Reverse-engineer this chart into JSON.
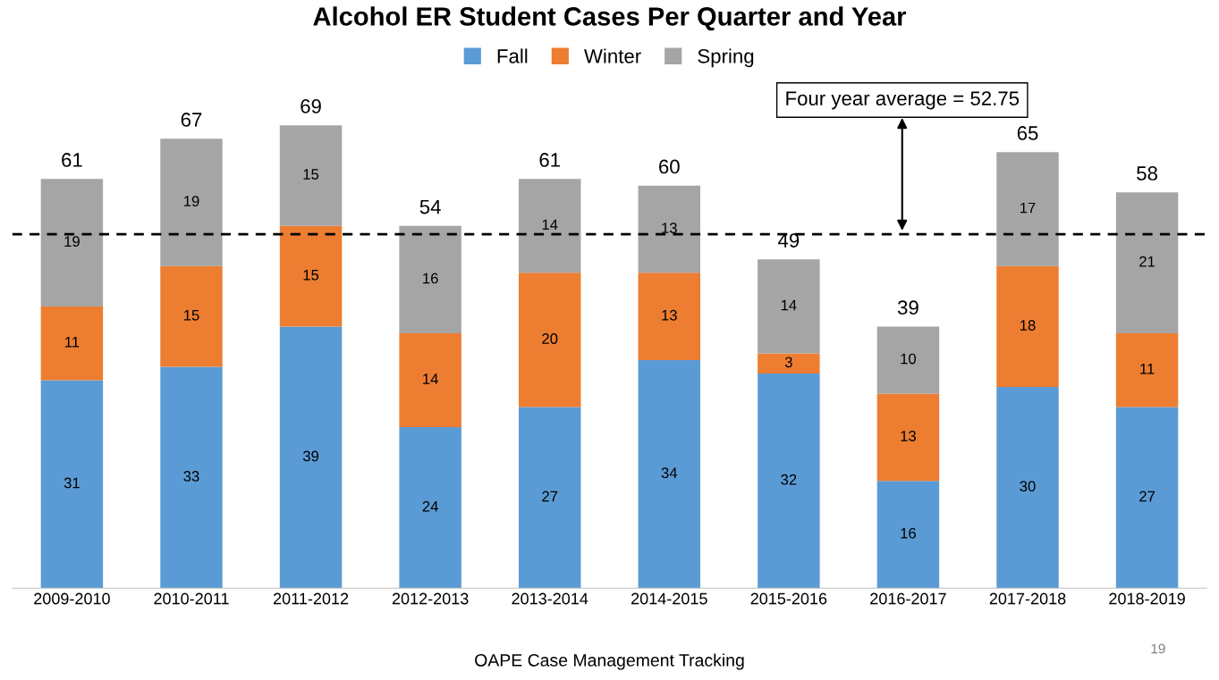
{
  "chart_data": {
    "type": "bar",
    "title": "Alcohol ER Student Cases Per Quarter and Year",
    "categories": [
      "2009-2010",
      "2010-2011",
      "2011-2012",
      "2012-2013",
      "2013-2014",
      "2014-2015",
      "2015-2016",
      "2016-2017",
      "2017-2018",
      "2018-2019"
    ],
    "stacked": true,
    "series": [
      {
        "name": "Fall",
        "color": "#5b9bd5",
        "values": [
          31,
          33,
          39,
          24,
          27,
          34,
          32,
          16,
          30,
          27
        ]
      },
      {
        "name": "Winter",
        "color": "#ed7d31",
        "values": [
          11,
          15,
          15,
          14,
          20,
          13,
          3,
          13,
          18,
          11
        ]
      },
      {
        "name": "Spring",
        "color": "#a5a5a5",
        "values": [
          19,
          19,
          15,
          16,
          14,
          13,
          14,
          10,
          17,
          21
        ]
      }
    ],
    "totals": [
      "61",
      "67",
      "69",
      "54",
      "61",
      "60",
      "49",
      "39",
      "65",
      "58"
    ],
    "data_labels": true,
    "ylim": [
      0,
      75
    ],
    "tick_labels": "x",
    "grid": false,
    "legend": "top",
    "ref_lines": [
      {
        "axis": "y",
        "value": 52.75,
        "label": "Four year average = 52.75",
        "color": "#000000",
        "line_style": "dashed"
      }
    ],
    "annotations": [
      "OAPE Case Management Tracking",
      "19"
    ]
  }
}
